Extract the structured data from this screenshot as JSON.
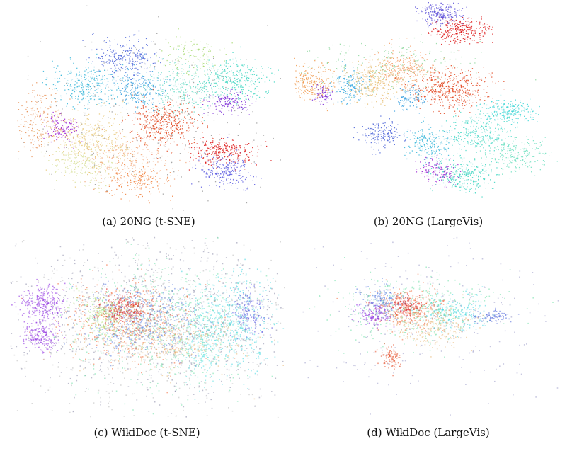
{
  "chart_data": [
    {
      "type": "scatter",
      "caption": "(a) 20NG (t-SNE)",
      "clusters": [
        {
          "color": "#4a63d8",
          "cx": 0.41,
          "cy": 0.27,
          "sx": 0.06,
          "sy": 0.04,
          "n": 260
        },
        {
          "color": "#37b6d9",
          "cx": 0.27,
          "cy": 0.4,
          "sx": 0.07,
          "sy": 0.05,
          "n": 300
        },
        {
          "color": "#3aa0e0",
          "cx": 0.47,
          "cy": 0.42,
          "sx": 0.05,
          "sy": 0.05,
          "n": 220
        },
        {
          "color": "#6fdcc8",
          "cx": 0.63,
          "cy": 0.41,
          "sx": 0.07,
          "sy": 0.06,
          "n": 300
        },
        {
          "color": "#3fd6c2",
          "cx": 0.82,
          "cy": 0.38,
          "sx": 0.07,
          "sy": 0.05,
          "n": 300
        },
        {
          "color": "#7a28d6",
          "cx": 0.8,
          "cy": 0.48,
          "sx": 0.05,
          "sy": 0.03,
          "n": 140
        },
        {
          "color": "#e34a24",
          "cx": 0.55,
          "cy": 0.58,
          "sx": 0.06,
          "sy": 0.05,
          "n": 420
        },
        {
          "color": "#e8935a",
          "cx": 0.09,
          "cy": 0.57,
          "sx": 0.05,
          "sy": 0.07,
          "n": 200
        },
        {
          "color": "#9b1fd1",
          "cx": 0.18,
          "cy": 0.6,
          "sx": 0.03,
          "sy": 0.04,
          "n": 120
        },
        {
          "color": "#e8c878",
          "cx": 0.28,
          "cy": 0.66,
          "sx": 0.08,
          "sy": 0.07,
          "n": 360
        },
        {
          "color": "#f2a87c",
          "cx": 0.43,
          "cy": 0.74,
          "sx": 0.08,
          "sy": 0.06,
          "n": 260
        },
        {
          "color": "#d8e09a",
          "cx": 0.25,
          "cy": 0.77,
          "sx": 0.06,
          "sy": 0.05,
          "n": 200
        },
        {
          "color": "#dd1818",
          "cx": 0.77,
          "cy": 0.71,
          "sx": 0.06,
          "sy": 0.03,
          "n": 260
        },
        {
          "color": "#5b5be0",
          "cx": 0.79,
          "cy": 0.8,
          "sx": 0.05,
          "sy": 0.04,
          "n": 220
        },
        {
          "color": "#a6d96e",
          "cx": 0.66,
          "cy": 0.26,
          "sx": 0.06,
          "sy": 0.04,
          "n": 120
        },
        {
          "color": "#f07f3a",
          "cx": 0.46,
          "cy": 0.85,
          "sx": 0.07,
          "sy": 0.04,
          "n": 160
        },
        {
          "color": "#999999",
          "cx": 0.5,
          "cy": 0.55,
          "sx": 0.24,
          "sy": 0.2,
          "n": 260
        }
      ]
    },
    {
      "type": "scatter",
      "caption": "(b) 20NG (LargeVis)",
      "clusters": [
        {
          "color": "#5b4fd8",
          "cx": 0.55,
          "cy": 0.06,
          "sx": 0.04,
          "sy": 0.03,
          "n": 200
        },
        {
          "color": "#dd1818",
          "cx": 0.61,
          "cy": 0.14,
          "sx": 0.05,
          "sy": 0.03,
          "n": 280
        },
        {
          "color": "#f09a4e",
          "cx": 0.08,
          "cy": 0.39,
          "sx": 0.04,
          "sy": 0.04,
          "n": 220
        },
        {
          "color": "#7a28d6",
          "cx": 0.12,
          "cy": 0.44,
          "sx": 0.02,
          "sy": 0.02,
          "n": 70
        },
        {
          "color": "#37a8e0",
          "cx": 0.21,
          "cy": 0.4,
          "sx": 0.03,
          "sy": 0.04,
          "n": 150
        },
        {
          "color": "#e8c27a",
          "cx": 0.3,
          "cy": 0.38,
          "sx": 0.05,
          "sy": 0.05,
          "n": 280
        },
        {
          "color": "#f4a06a",
          "cx": 0.41,
          "cy": 0.33,
          "sx": 0.06,
          "sy": 0.05,
          "n": 280
        },
        {
          "color": "#e34a24",
          "cx": 0.58,
          "cy": 0.42,
          "sx": 0.07,
          "sy": 0.05,
          "n": 440
        },
        {
          "color": "#3aa0e0",
          "cx": 0.43,
          "cy": 0.46,
          "sx": 0.03,
          "sy": 0.03,
          "n": 100
        },
        {
          "color": "#3fd6d6",
          "cx": 0.79,
          "cy": 0.52,
          "sx": 0.05,
          "sy": 0.03,
          "n": 200
        },
        {
          "color": "#4a63d8",
          "cx": 0.33,
          "cy": 0.63,
          "sx": 0.04,
          "sy": 0.03,
          "n": 160
        },
        {
          "color": "#37b6d9",
          "cx": 0.5,
          "cy": 0.67,
          "sx": 0.04,
          "sy": 0.04,
          "n": 200
        },
        {
          "color": "#4ad8c8",
          "cx": 0.68,
          "cy": 0.62,
          "sx": 0.06,
          "sy": 0.05,
          "n": 280
        },
        {
          "color": "#6fe0c0",
          "cx": 0.82,
          "cy": 0.72,
          "sx": 0.05,
          "sy": 0.04,
          "n": 200
        },
        {
          "color": "#9b1fd1",
          "cx": 0.54,
          "cy": 0.8,
          "sx": 0.04,
          "sy": 0.03,
          "n": 140
        },
        {
          "color": "#3fd6c2",
          "cx": 0.63,
          "cy": 0.82,
          "sx": 0.06,
          "sy": 0.04,
          "n": 260
        },
        {
          "color": "#8fd8a0",
          "cx": 0.35,
          "cy": 0.3,
          "sx": 0.15,
          "sy": 0.06,
          "n": 200
        }
      ]
    },
    {
      "type": "scatter",
      "caption": "(c) WikiDoc (t-SNE)",
      "clusters": [
        {
          "color": "#8a8aa8",
          "cx": 0.52,
          "cy": 0.45,
          "sx": 0.28,
          "sy": 0.24,
          "n": 900
        },
        {
          "color": "#6fe0a8",
          "cx": 0.55,
          "cy": 0.48,
          "sx": 0.17,
          "sy": 0.17,
          "n": 700
        },
        {
          "color": "#5b7de0",
          "cx": 0.48,
          "cy": 0.45,
          "sx": 0.1,
          "sy": 0.1,
          "n": 500
        },
        {
          "color": "#f06a3a",
          "cx": 0.44,
          "cy": 0.47,
          "sx": 0.12,
          "sy": 0.11,
          "n": 500
        },
        {
          "color": "#dd1818",
          "cx": 0.42,
          "cy": 0.4,
          "sx": 0.04,
          "sy": 0.04,
          "n": 200
        },
        {
          "color": "#8a28e0",
          "cx": 0.13,
          "cy": 0.37,
          "sx": 0.04,
          "sy": 0.05,
          "n": 260
        },
        {
          "color": "#8a28e0",
          "cx": 0.12,
          "cy": 0.55,
          "sx": 0.03,
          "sy": 0.04,
          "n": 180
        },
        {
          "color": "#3fd6e0",
          "cx": 0.82,
          "cy": 0.47,
          "sx": 0.06,
          "sy": 0.14,
          "n": 360
        },
        {
          "color": "#5b5be0",
          "cx": 0.86,
          "cy": 0.42,
          "sx": 0.03,
          "sy": 0.06,
          "n": 160
        },
        {
          "color": "#e8b878",
          "cx": 0.55,
          "cy": 0.58,
          "sx": 0.14,
          "sy": 0.07,
          "n": 320
        },
        {
          "color": "#5be0e0",
          "cx": 0.7,
          "cy": 0.52,
          "sx": 0.04,
          "sy": 0.13,
          "n": 280
        },
        {
          "color": "#b0e070",
          "cx": 0.35,
          "cy": 0.42,
          "sx": 0.05,
          "sy": 0.06,
          "n": 200
        },
        {
          "color": "#bbbbbb",
          "cx": 0.5,
          "cy": 0.5,
          "sx": 0.34,
          "sy": 0.3,
          "n": 500
        }
      ]
    },
    {
      "type": "scatter",
      "caption": "(d) WikiDoc (LargeVis)",
      "clusters": [
        {
          "color": "#6fe0a8",
          "cx": 0.45,
          "cy": 0.4,
          "sx": 0.14,
          "sy": 0.09,
          "n": 420
        },
        {
          "color": "#f06a3a",
          "cx": 0.43,
          "cy": 0.4,
          "sx": 0.07,
          "sy": 0.06,
          "n": 300
        },
        {
          "color": "#dd1818",
          "cx": 0.42,
          "cy": 0.38,
          "sx": 0.03,
          "sy": 0.03,
          "n": 140
        },
        {
          "color": "#5b7de0",
          "cx": 0.33,
          "cy": 0.36,
          "sx": 0.04,
          "sy": 0.04,
          "n": 160
        },
        {
          "color": "#8a28e0",
          "cx": 0.3,
          "cy": 0.43,
          "sx": 0.03,
          "sy": 0.03,
          "n": 120
        },
        {
          "color": "#3fd6e0",
          "cx": 0.6,
          "cy": 0.42,
          "sx": 0.06,
          "sy": 0.05,
          "n": 200
        },
        {
          "color": "#e8b878",
          "cx": 0.52,
          "cy": 0.5,
          "sx": 0.08,
          "sy": 0.06,
          "n": 200
        },
        {
          "color": "#e34a24",
          "cx": 0.36,
          "cy": 0.66,
          "sx": 0.02,
          "sy": 0.03,
          "n": 100
        },
        {
          "color": "#4a63d8",
          "cx": 0.73,
          "cy": 0.44,
          "sx": 0.03,
          "sy": 0.02,
          "n": 80
        },
        {
          "color": "#9b9bc8",
          "cx": 0.48,
          "cy": 0.45,
          "sx": 0.26,
          "sy": 0.22,
          "n": 260
        }
      ]
    }
  ]
}
